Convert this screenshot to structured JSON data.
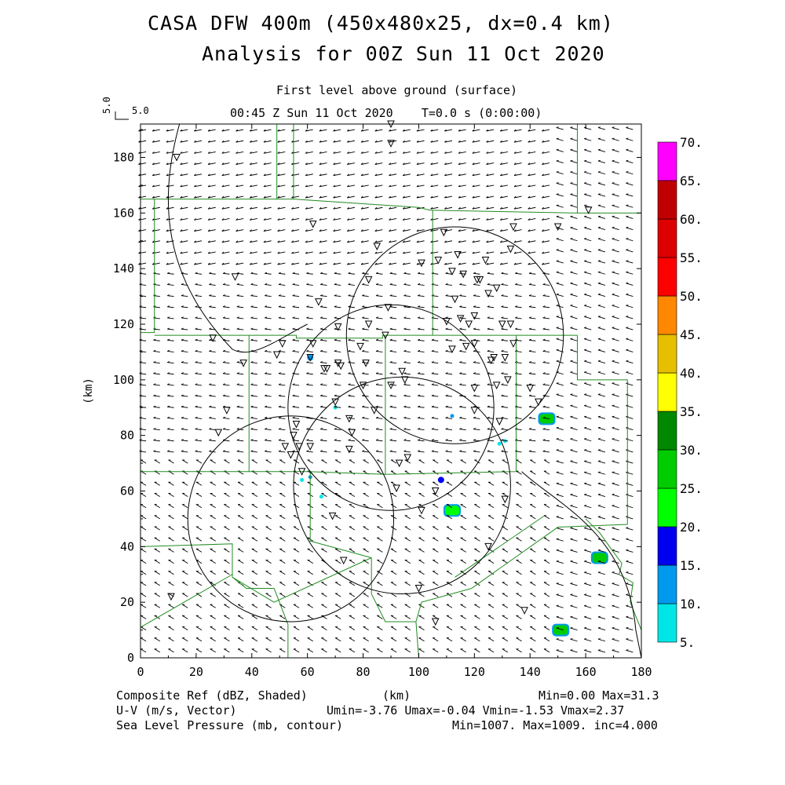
{
  "header": {
    "title_line1": "CASA DFW 400m (450x480x25, dx=0.4 km)",
    "title_line2": "Analysis for 00Z Sun 11 Oct 2020",
    "level_label": "First level above ground (surface)",
    "time_label": "00:45 Z Sun 11 Oct 2020    T=0.0 s (0:00:00)",
    "ref_vector_vertical": "5.0",
    "ref_vector_horizontal": "5.0"
  },
  "axes": {
    "xlabel": "(km)",
    "ylabel": "(km)",
    "xticks": [
      "0",
      "20",
      "40",
      "60",
      "80",
      "100",
      "120",
      "140",
      "160",
      "180"
    ],
    "yticks": [
      "0",
      "20",
      "40",
      "60",
      "80",
      "100",
      "120",
      "140",
      "160",
      "180"
    ]
  },
  "colorbar": {
    "labels": [
      "5.",
      "10.",
      "15.",
      "20.",
      "25.",
      "30.",
      "35.",
      "40.",
      "45.",
      "50.",
      "55.",
      "60.",
      "65.",
      "70."
    ],
    "colors": [
      "#00e6e6",
      "#0099ee",
      "#0000ee",
      "#00ff00",
      "#00cc00",
      "#008800",
      "#ffff00",
      "#e6c000",
      "#ff8800",
      "#ff0000",
      "#dd0000",
      "#c00000",
      "#ff00ff"
    ]
  },
  "footer": {
    "line1_left": "Composite Ref (dBZ, Shaded)",
    "line1_center": "(km)",
    "line1_right": "Min=0.00 Max=31.3",
    "line2_left": "U-V (m/s, Vector)",
    "line2_right": "Umin=-3.76 Umax=-0.04 Vmin=-1.53 Vmax=2.37",
    "line3_left": "Sea Level Pressure (mb, contour)",
    "line3_right": "Min=1007. Max=1009. inc=4.000"
  },
  "chart_data": {
    "type": "heatmap",
    "xlim": [
      0,
      180
    ],
    "ylim": [
      0,
      192
    ],
    "colors": {
      "boundaries": "#228b22",
      "stations": "#000000",
      "radar_rings": "#000000",
      "vectors": "#000000"
    },
    "radar_rings": [
      {
        "cx": 113,
        "cy": 116,
        "r": 39
      },
      {
        "cx": 90,
        "cy": 90,
        "r": 37
      },
      {
        "cx": 94,
        "cy": 62,
        "r": 39
      },
      {
        "cx": 54,
        "cy": 50,
        "r": 37
      }
    ],
    "reflectivity_echoes": [
      {
        "x": 146,
        "y": 86,
        "dbz": 25
      },
      {
        "x": 165,
        "y": 36,
        "dbz": 28
      },
      {
        "x": 151,
        "y": 10,
        "dbz": 28
      },
      {
        "x": 112,
        "y": 53,
        "dbz": 20
      },
      {
        "x": 108,
        "y": 64,
        "dbz": 15
      },
      {
        "x": 61,
        "y": 108,
        "dbz": 12
      },
      {
        "x": 112,
        "y": 87,
        "dbz": 10
      },
      {
        "x": 61,
        "y": 65,
        "dbz": 10
      },
      {
        "x": 65,
        "y": 58,
        "dbz": 8
      },
      {
        "x": 129,
        "y": 77,
        "dbz": 8
      },
      {
        "x": 131,
        "y": 78,
        "dbz": 8
      },
      {
        "x": 70,
        "y": 90,
        "dbz": 8
      },
      {
        "x": 58,
        "y": 64,
        "dbz": 8
      }
    ],
    "stations": [
      [
        11,
        22
      ],
      [
        13,
        180
      ],
      [
        26,
        115
      ],
      [
        28,
        81
      ],
      [
        31,
        89
      ],
      [
        34,
        137
      ],
      [
        37,
        106
      ],
      [
        49,
        109
      ],
      [
        51,
        113
      ],
      [
        52,
        76
      ],
      [
        54,
        73
      ],
      [
        55,
        80
      ],
      [
        56,
        84
      ],
      [
        57,
        76
      ],
      [
        58,
        67
      ],
      [
        61,
        76
      ],
      [
        61,
        108
      ],
      [
        62,
        113
      ],
      [
        62,
        156
      ],
      [
        64,
        128
      ],
      [
        66,
        104
      ],
      [
        67,
        104
      ],
      [
        69,
        51
      ],
      [
        70,
        92
      ],
      [
        71,
        106
      ],
      [
        71,
        119
      ],
      [
        72,
        105
      ],
      [
        73,
        35
      ],
      [
        75,
        75
      ],
      [
        75,
        86
      ],
      [
        76,
        81
      ],
      [
        79,
        112
      ],
      [
        80,
        98
      ],
      [
        81,
        106
      ],
      [
        82,
        120
      ],
      [
        82,
        136
      ],
      [
        84,
        89
      ],
      [
        85,
        148
      ],
      [
        88,
        116
      ],
      [
        89,
        126
      ],
      [
        90,
        98
      ],
      [
        90,
        185
      ],
      [
        90,
        192
      ],
      [
        92,
        61
      ],
      [
        93,
        70
      ],
      [
        94,
        103
      ],
      [
        95,
        100
      ],
      [
        96,
        72
      ],
      [
        100,
        25
      ],
      [
        101,
        142
      ],
      [
        101,
        53
      ],
      [
        106,
        13
      ],
      [
        106,
        60
      ],
      [
        107,
        143
      ],
      [
        109,
        153
      ],
      [
        110,
        121
      ],
      [
        112,
        111
      ],
      [
        112,
        139
      ],
      [
        113,
        129
      ],
      [
        114,
        145
      ],
      [
        115,
        122
      ],
      [
        116,
        138
      ],
      [
        117,
        112
      ],
      [
        118,
        120
      ],
      [
        120,
        113
      ],
      [
        120,
        123
      ],
      [
        120,
        97
      ],
      [
        120,
        89
      ],
      [
        121,
        136
      ],
      [
        122,
        136
      ],
      [
        124,
        143
      ],
      [
        125,
        131
      ],
      [
        125,
        40
      ],
      [
        126,
        107
      ],
      [
        127,
        108
      ],
      [
        128,
        133
      ],
      [
        128,
        98
      ],
      [
        129,
        85
      ],
      [
        130,
        120
      ],
      [
        131,
        108
      ],
      [
        131,
        57
      ],
      [
        132,
        100
      ],
      [
        133,
        120
      ],
      [
        134,
        113
      ],
      [
        133,
        147
      ],
      [
        134,
        155
      ],
      [
        138,
        17
      ],
      [
        140,
        97
      ],
      [
        143,
        92
      ],
      [
        150,
        155
      ],
      [
        161,
        161
      ]
    ]
  }
}
